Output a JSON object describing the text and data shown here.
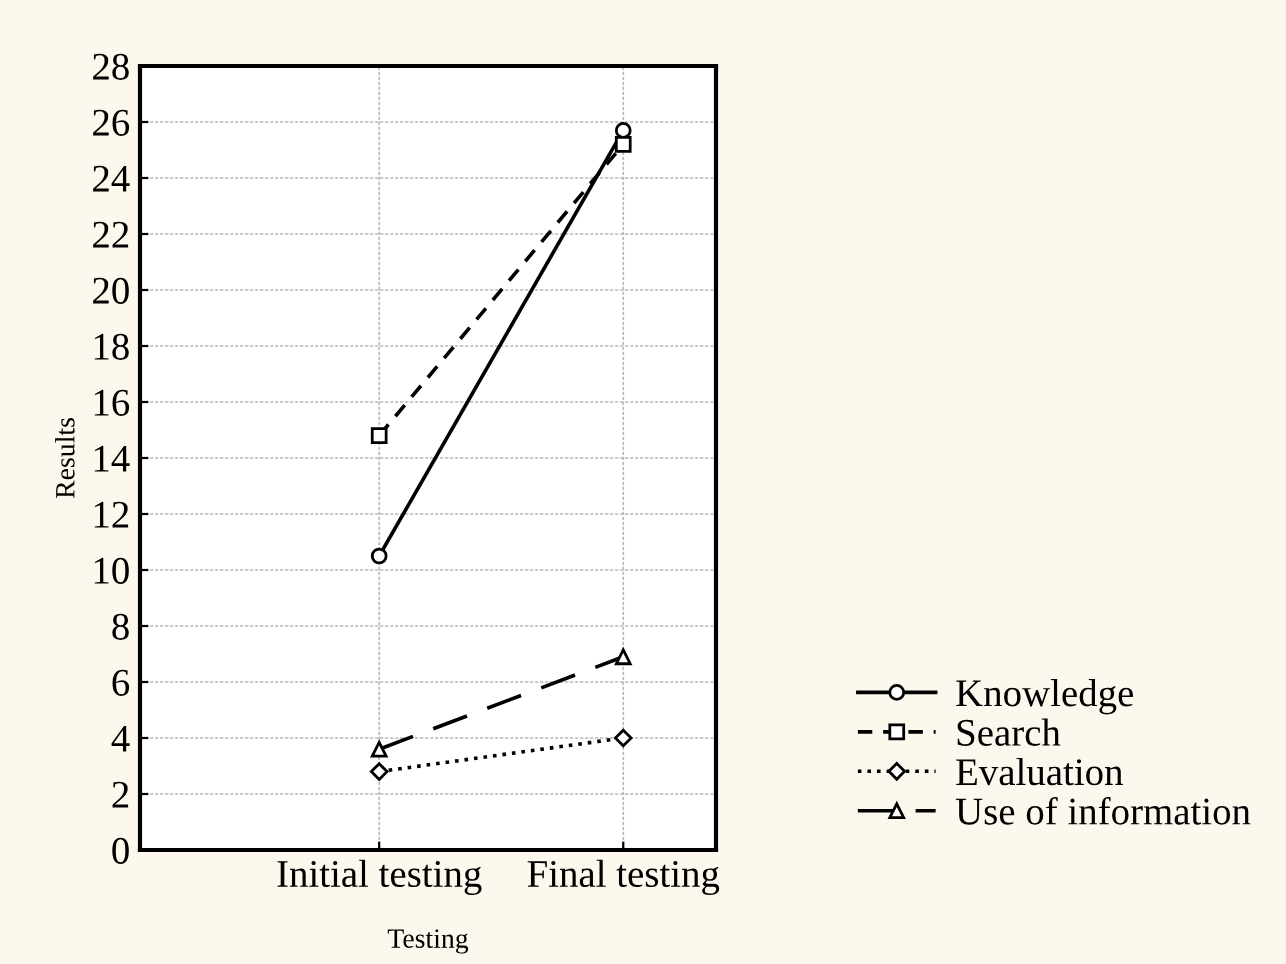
{
  "chart_data": {
    "type": "line",
    "xlabel": "Testing",
    "ylabel": "Results",
    "categories": [
      "Initial testing",
      "Final testing"
    ],
    "series": [
      {
        "name": "Knowledge",
        "color": "#000000",
        "values": [
          10.5,
          25.7
        ],
        "marker": "circle",
        "line_style": "solid"
      },
      {
        "name": "Search",
        "color": "#000000",
        "values": [
          14.8,
          25.2
        ],
        "marker": "square",
        "line_style": "dashed"
      },
      {
        "name": "Evaluation",
        "color": "#000000",
        "values": [
          2.8,
          4.0
        ],
        "marker": "diamond",
        "line_style": "dotted"
      },
      {
        "name": "Use of information",
        "color": "#000000",
        "values": [
          3.6,
          6.9
        ],
        "marker": "triangle",
        "line_style": "dashed"
      }
    ],
    "ylim": [
      0,
      28
    ],
    "yticks": [
      0,
      2,
      4,
      6,
      8,
      10,
      12,
      14,
      16,
      18,
      20,
      22,
      24,
      26,
      28
    ],
    "grid": true,
    "legend": "bottom right"
  }
}
